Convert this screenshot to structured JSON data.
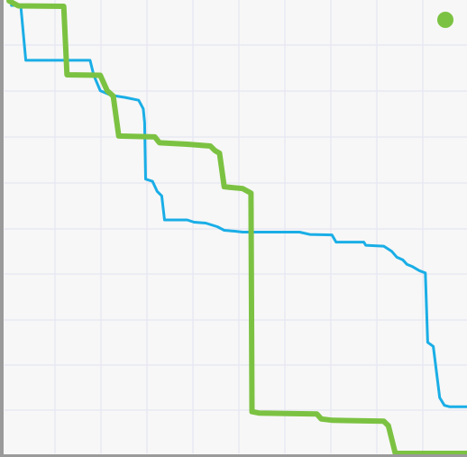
{
  "chart_data": {
    "type": "line",
    "title": "",
    "xlabel": "",
    "ylabel": "",
    "grid": true,
    "legend_position": "top-right",
    "xlim": [
      0,
      100
    ],
    "ylim": [
      0,
      100
    ],
    "colors": {
      "background": "#f7f7f7",
      "grid": "#e8e8f4",
      "axis": "#9a9a9a"
    },
    "legend": {
      "marker_color": "#7cc242"
    },
    "series": [
      {
        "color": "#1aaee6",
        "style": "thin",
        "points": [
          [
            1.5,
            98.8
          ],
          [
            3.5,
            98.8
          ],
          [
            4.6,
            86.7
          ],
          [
            18.5,
            86.7
          ],
          [
            19.3,
            83.4
          ],
          [
            20.7,
            80.0
          ],
          [
            23.0,
            79.0
          ],
          [
            26.1,
            78.5
          ],
          [
            29.0,
            77.9
          ],
          [
            30.0,
            76.0
          ],
          [
            30.3,
            73.0
          ],
          [
            30.5,
            60.5
          ],
          [
            32.0,
            60.0
          ],
          [
            33.0,
            57.8
          ],
          [
            34.0,
            56.8
          ],
          [
            34.6,
            51.5
          ],
          [
            39.5,
            51.5
          ],
          [
            41.0,
            51.0
          ],
          [
            43.5,
            50.8
          ],
          [
            46.0,
            50.0
          ],
          [
            47.5,
            49.2
          ],
          [
            49.8,
            49.0
          ],
          [
            51.5,
            48.8
          ],
          [
            63.8,
            48.8
          ],
          [
            66.0,
            48.3
          ],
          [
            70.8,
            48.2
          ],
          [
            71.7,
            46.6
          ],
          [
            77.7,
            46.6
          ],
          [
            78.1,
            45.9
          ],
          [
            82.0,
            45.7
          ],
          [
            83.7,
            44.6
          ],
          [
            84.8,
            43.3
          ],
          [
            86.1,
            42.7
          ],
          [
            87.0,
            41.7
          ],
          [
            88.2,
            41.2
          ],
          [
            89.7,
            40.3
          ],
          [
            91.0,
            39.8
          ],
          [
            91.5,
            24.5
          ],
          [
            92.7,
            23.6
          ],
          [
            94.1,
            12.3
          ],
          [
            95.1,
            10.6
          ],
          [
            96.2,
            10.3
          ],
          [
            100.0,
            10.3
          ]
        ]
      },
      {
        "color": "#7cc242",
        "style": "thick",
        "points": [
          [
            1.0,
            99.8
          ],
          [
            3.0,
            98.7
          ],
          [
            12.8,
            98.6
          ],
          [
            13.5,
            83.5
          ],
          [
            20.7,
            83.4
          ],
          [
            22.2,
            80.0
          ],
          [
            23.5,
            78.8
          ],
          [
            24.7,
            70.0
          ],
          [
            32.5,
            69.8
          ],
          [
            33.5,
            68.5
          ],
          [
            39.5,
            68.2
          ],
          [
            44.5,
            67.8
          ],
          [
            45.5,
            66.8
          ],
          [
            46.5,
            66.2
          ],
          [
            47.5,
            58.8
          ],
          [
            51.5,
            58.4
          ],
          [
            53.3,
            57.4
          ],
          [
            53.5,
            9.2
          ],
          [
            55.0,
            8.9
          ],
          [
            61.0,
            8.8
          ],
          [
            67.5,
            8.7
          ],
          [
            68.5,
            7.6
          ],
          [
            71.0,
            7.3
          ],
          [
            82.0,
            7.1
          ],
          [
            83.0,
            6.1
          ],
          [
            84.5,
            0.0
          ],
          [
            100.0,
            0.0
          ]
        ]
      }
    ]
  }
}
